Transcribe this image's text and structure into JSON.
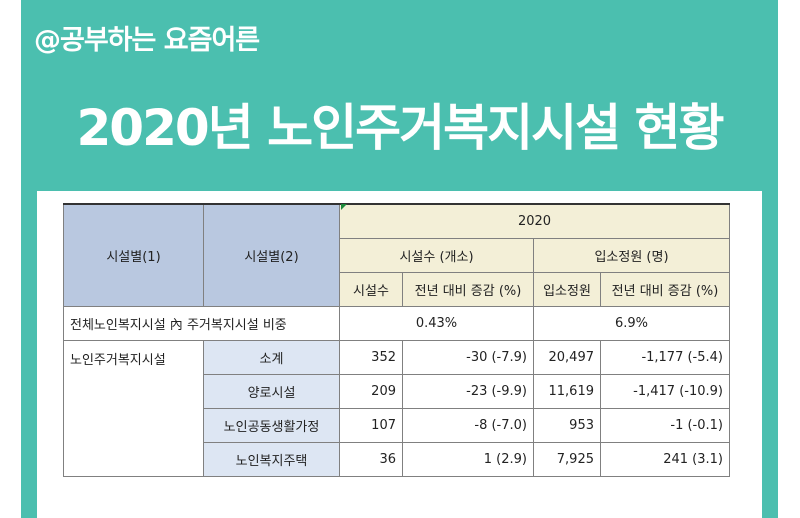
{
  "header": {
    "brand": "@공부하는 요즘어른",
    "title": "2020년 노인주거복지시설 현황"
  },
  "table": {
    "col_header_1": "시설별(1)",
    "col_header_2": "시설별(2)",
    "year": "2020",
    "group_facilities": "시설수 (개소)",
    "group_capacity": "입소정원 (명)",
    "sub_facilities": "시설수",
    "sub_facilities_change": "전년 대비 증감 (%)",
    "sub_capacity": "입소정원",
    "sub_capacity_change": "전년 대비 증감 (%)",
    "share_row": {
      "label": "전체노인복지시설 內 주거복지시설 비중",
      "facilities_share": "0.43%",
      "capacity_share": "6.9%"
    },
    "category": "노인주거복지시설",
    "rows": [
      {
        "name": "소계",
        "facilities": "352",
        "facilities_change": "-30 (-7.9)",
        "capacity": "20,497",
        "capacity_change": "-1,177 (-5.4)"
      },
      {
        "name": "양로시설",
        "facilities": "209",
        "facilities_change": "-23 (-9.9)",
        "capacity": "11,619",
        "capacity_change": "-1,417 (-10.9)"
      },
      {
        "name": "노인공동생활가정",
        "facilities": "107",
        "facilities_change": "-8 (-7.0)",
        "capacity": "953",
        "capacity_change": "-1 (-0.1)"
      },
      {
        "name": "노인복지주택",
        "facilities": "36",
        "facilities_change": "1 (2.9)",
        "capacity": "7,925",
        "capacity_change": "241 (3.1)"
      }
    ]
  },
  "colors": {
    "panel": "#4bbfaf",
    "header_blue": "#b9c8e0",
    "header_yellow": "#f3efd7",
    "label_blue": "#dde6f3"
  }
}
